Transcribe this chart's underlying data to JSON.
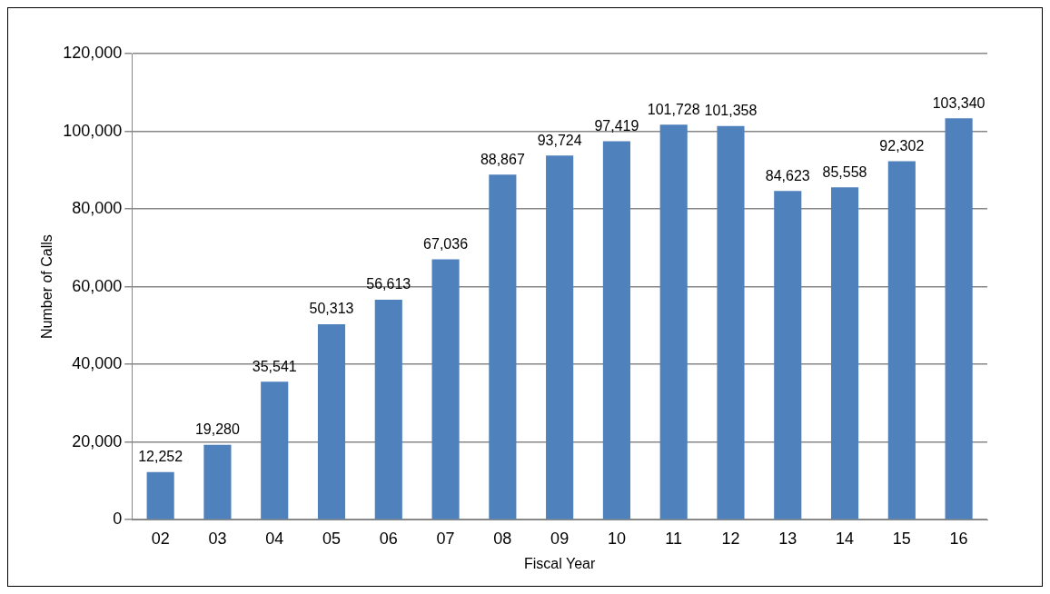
{
  "chart_data": {
    "type": "bar",
    "xlabel": "Fiscal Year",
    "ylabel": "Number of Calls",
    "categories": [
      "02",
      "03",
      "04",
      "05",
      "06",
      "07",
      "08",
      "09",
      "10",
      "11",
      "12",
      "13",
      "14",
      "15",
      "16"
    ],
    "values": [
      12252,
      19280,
      35541,
      50313,
      56613,
      67036,
      88867,
      93724,
      97419,
      101728,
      101358,
      84623,
      85558,
      92302,
      103340
    ],
    "value_labels": [
      "12,252",
      "19,280",
      "35,541",
      "50,313",
      "56,613",
      "67,036",
      "88,867",
      "93,724",
      "97,419",
      "101,728",
      "101,358",
      "84,623",
      "85,558",
      "92,302",
      "103,340"
    ],
    "color": "#4f81bd",
    "ylim": [
      0,
      120000
    ],
    "yticks": [
      0,
      {
        "value": 20000,
        "label": "20,000"
      },
      {
        "value": 40000,
        "label": "40,000"
      },
      {
        "value": 60000,
        "label": "60,000"
      },
      {
        "value": 80000,
        "label": "80,000"
      },
      {
        "value": 100000,
        "label": "100,000"
      },
      {
        "value": 120000,
        "label": "120,000"
      }
    ],
    "grid": "y",
    "legend": false
  }
}
